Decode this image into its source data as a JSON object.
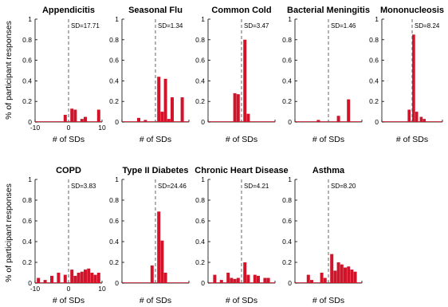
{
  "figure": {
    "ylabel": "% of participant responses",
    "xlabel": "# of SDs"
  },
  "chart_data": [
    {
      "type": "bar",
      "title": "Appendicitis",
      "sd_label": "SD=17.71",
      "xlim": [
        -10,
        10
      ],
      "ylim": [
        0,
        1
      ],
      "xticks": [
        -10,
        0,
        10
      ],
      "yticks": [
        0,
        0.2,
        0.4,
        0.6,
        0.8,
        1
      ],
      "ytick_labels": [
        "0",
        "0.2",
        "0.4",
        "0.6",
        "0.8",
        "1"
      ],
      "bins": [
        {
          "x": -1,
          "y": 0.07
        },
        {
          "x": 1,
          "y": 0.13
        },
        {
          "x": 2,
          "y": 0.12
        },
        {
          "x": 4,
          "y": 0.03
        },
        {
          "x": 5,
          "y": 0.05
        },
        {
          "x": 9,
          "y": 0.12
        }
      ],
      "show_ylabel": true,
      "show_xlabel": true
    },
    {
      "type": "bar",
      "title": "Seasonal Flu",
      "sd_label": "SD=1.34",
      "xlim": [
        -10,
        10
      ],
      "ylim": [
        0,
        1
      ],
      "xticks": [],
      "yticks": [
        0,
        0.2,
        0.4,
        0.6,
        0.8,
        1
      ],
      "ytick_labels": [
        "0",
        "0.2",
        "0.4",
        "0.6",
        "0.8",
        "1"
      ],
      "bins": [
        {
          "x": -5,
          "y": 0.04
        },
        {
          "x": -3,
          "y": 0.02
        },
        {
          "x": 1,
          "y": 0.44
        },
        {
          "x": 2,
          "y": 0.1
        },
        {
          "x": 3,
          "y": 0.42
        },
        {
          "x": 4,
          "y": 0.03
        },
        {
          "x": 5,
          "y": 0.24
        },
        {
          "x": 8,
          "y": 0.24
        }
      ],
      "show_ylabel": false,
      "show_xlabel": true
    },
    {
      "type": "bar",
      "title": "Common Cold",
      "sd_label": "SD=3.47",
      "xlim": [
        -10,
        10
      ],
      "ylim": [
        0,
        1
      ],
      "xticks": [],
      "yticks": [
        0,
        0.2,
        0.4,
        0.6,
        0.8,
        1
      ],
      "ytick_labels": [
        "0",
        "0.2",
        "0.4",
        "0.6",
        "0.8",
        "1"
      ],
      "bins": [
        {
          "x": -2,
          "y": 0.28
        },
        {
          "x": -1,
          "y": 0.27
        },
        {
          "x": 1,
          "y": 0.8
        },
        {
          "x": 2,
          "y": 0.08
        }
      ],
      "show_ylabel": false,
      "show_xlabel": true
    },
    {
      "type": "bar",
      "title": "Bacterial Meningitis",
      "sd_label": "SD=1.46",
      "xlim": [
        -10,
        10
      ],
      "ylim": [
        0,
        1
      ],
      "xticks": [],
      "yticks": [
        0,
        0.2,
        0.4,
        0.6,
        0.8,
        1
      ],
      "ytick_labels": [
        "0",
        "0.2",
        "0.4",
        "0.6",
        "0.8",
        "1"
      ],
      "bins": [
        {
          "x": -3,
          "y": 0.02
        },
        {
          "x": 3,
          "y": 0.06
        },
        {
          "x": 6,
          "y": 0.22
        }
      ],
      "show_ylabel": false,
      "show_xlabel": true
    },
    {
      "type": "bar",
      "title": "Mononucleosis",
      "sd_label": "SD=8.24",
      "xlim": [
        -10,
        10
      ],
      "ylim": [
        0,
        1
      ],
      "xticks": [],
      "yticks": [
        0,
        0.2,
        0.4,
        0.6,
        0.8,
        1
      ],
      "ytick_labels": [
        "0",
        "0.2",
        "0.4",
        "0.6",
        "0.8",
        "1"
      ],
      "bins": [
        {
          "x": -1,
          "y": 0.12
        },
        {
          "x": 0.5,
          "y": 0.85
        },
        {
          "x": 1.5,
          "y": 0.1
        },
        {
          "x": 3,
          "y": 0.05
        },
        {
          "x": 4,
          "y": 0.03
        }
      ],
      "show_ylabel": false,
      "show_xlabel": true
    },
    {
      "type": "bar",
      "title": "COPD",
      "sd_label": "SD=3.83",
      "xlim": [
        -10,
        10
      ],
      "ylim": [
        0,
        1
      ],
      "xticks": [
        -10,
        0,
        10
      ],
      "yticks": [
        0,
        0.2,
        0.4,
        0.6,
        0.8,
        1
      ],
      "ytick_labels": [
        "0",
        "0.2",
        "0.4",
        "0.6",
        "0.8",
        "1"
      ],
      "bins": [
        {
          "x": -9,
          "y": 0.05
        },
        {
          "x": -7,
          "y": 0.03
        },
        {
          "x": -5,
          "y": 0.07
        },
        {
          "x": -3,
          "y": 0.1
        },
        {
          "x": -1,
          "y": 0.08
        },
        {
          "x": 1,
          "y": 0.13
        },
        {
          "x": 2,
          "y": 0.07
        },
        {
          "x": 3,
          "y": 0.1
        },
        {
          "x": 4,
          "y": 0.11
        },
        {
          "x": 5,
          "y": 0.13
        },
        {
          "x": 6,
          "y": 0.14
        },
        {
          "x": 7,
          "y": 0.1
        },
        {
          "x": 8,
          "y": 0.08
        },
        {
          "x": 9,
          "y": 0.1
        }
      ],
      "show_ylabel": true,
      "show_xlabel": true
    },
    {
      "type": "bar",
      "title": "Type II Diabetes",
      "sd_label": "SD=24.46",
      "xlim": [
        -10,
        10
      ],
      "ylim": [
        0,
        1
      ],
      "xticks": [],
      "yticks": [
        0,
        0.2,
        0.4,
        0.6,
        0.8,
        1
      ],
      "ytick_labels": [
        "0",
        "0.2",
        "0.4",
        "0.6",
        "0.8",
        "1"
      ],
      "bins": [
        {
          "x": -1,
          "y": 0.17
        },
        {
          "x": 1,
          "y": 0.69
        },
        {
          "x": 2,
          "y": 0.41
        },
        {
          "x": 3,
          "y": 0.1
        }
      ],
      "show_ylabel": false,
      "show_xlabel": true
    },
    {
      "type": "bar",
      "title": "Chronic Heart Disease",
      "sd_label": "SD=4.21",
      "xlim": [
        -10,
        10
      ],
      "ylim": [
        0,
        1
      ],
      "xticks": [],
      "yticks": [
        0,
        0.2,
        0.4,
        0.6,
        0.8,
        1
      ],
      "ytick_labels": [
        "0",
        "0.2",
        "0.4",
        "0.6",
        "0.8",
        "1"
      ],
      "bins": [
        {
          "x": -8,
          "y": 0.08
        },
        {
          "x": -6,
          "y": 0.03
        },
        {
          "x": -4,
          "y": 0.1
        },
        {
          "x": -3,
          "y": 0.05
        },
        {
          "x": -2,
          "y": 0.04
        },
        {
          "x": -1,
          "y": 0.05
        },
        {
          "x": 1,
          "y": 0.2
        },
        {
          "x": 2,
          "y": 0.08
        },
        {
          "x": 4,
          "y": 0.08
        },
        {
          "x": 5,
          "y": 0.07
        },
        {
          "x": 7,
          "y": 0.05
        },
        {
          "x": 8,
          "y": 0.05
        }
      ],
      "show_ylabel": false,
      "show_xlabel": true
    },
    {
      "type": "bar",
      "title": "Asthma",
      "sd_label": "SD=8.20",
      "xlim": [
        -10,
        10
      ],
      "ylim": [
        0,
        1
      ],
      "xticks": [],
      "yticks": [
        0,
        0.2,
        0.4,
        0.6,
        0.8,
        1
      ],
      "ytick_labels": [
        "0",
        "0.2",
        "0.4",
        "0.6",
        "0.8",
        "1"
      ],
      "bins": [
        {
          "x": -6,
          "y": 0.08
        },
        {
          "x": -5,
          "y": 0.03
        },
        {
          "x": -2,
          "y": 0.1
        },
        {
          "x": -1,
          "y": 0.05
        },
        {
          "x": 1,
          "y": 0.28
        },
        {
          "x": 2,
          "y": 0.12
        },
        {
          "x": 3,
          "y": 0.2
        },
        {
          "x": 4,
          "y": 0.18
        },
        {
          "x": 5,
          "y": 0.15
        },
        {
          "x": 6,
          "y": 0.16
        },
        {
          "x": 7,
          "y": 0.13
        },
        {
          "x": 8,
          "y": 0.11
        }
      ],
      "show_ylabel": false,
      "show_xlabel": true
    }
  ]
}
